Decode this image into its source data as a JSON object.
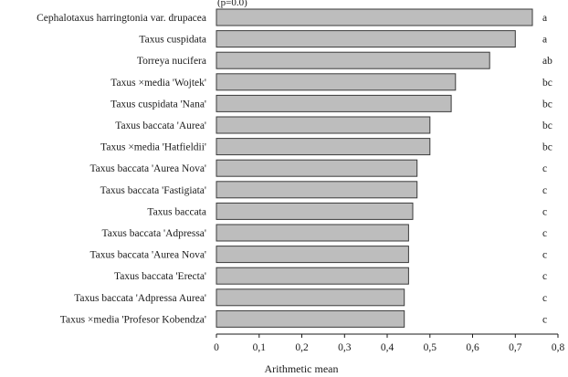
{
  "chart_data": {
    "type": "bar",
    "orientation": "horizontal",
    "header_fragment": "(p=0.0)",
    "xlabel": "Arithmetic mean",
    "xlim": [
      0,
      0.8
    ],
    "xticks": [
      "0",
      "0,1",
      "0,2",
      "0,3",
      "0,4",
      "0,5",
      "0,6",
      "0,7",
      "0,8"
    ],
    "grid": false,
    "bar_color": "#bdbdbd",
    "bar_edge_color": "#3a3a3a",
    "categories": [
      "Cephalotaxus harringtonia var. drupacea",
      "Taxus cuspidata",
      "Torreya nucifera",
      "Taxus ×media 'Wojtek'",
      "Taxus cuspidata 'Nana'",
      "Taxus baccata 'Aurea'",
      "Taxus ×media 'Hatfieldii'",
      "Taxus baccata 'Aurea Nova'",
      "Taxus baccata 'Fastigiata'",
      "Taxus baccata",
      "Taxus baccata 'Adpressa'",
      "Taxus baccata 'Aurea Nova'",
      "Taxus baccata 'Erecta'",
      "Taxus baccata 'Adpressa Aurea'",
      "Taxus ×media 'Profesor Kobendza'"
    ],
    "values": [
      0.74,
      0.7,
      0.64,
      0.56,
      0.55,
      0.5,
      0.5,
      0.47,
      0.47,
      0.46,
      0.45,
      0.45,
      0.45,
      0.44,
      0.44
    ],
    "group_letters": [
      "a",
      "a",
      "ab",
      "bc",
      "bc",
      "bc",
      "bc",
      "c",
      "c",
      "c",
      "c",
      "c",
      "c",
      "c",
      "c"
    ]
  }
}
